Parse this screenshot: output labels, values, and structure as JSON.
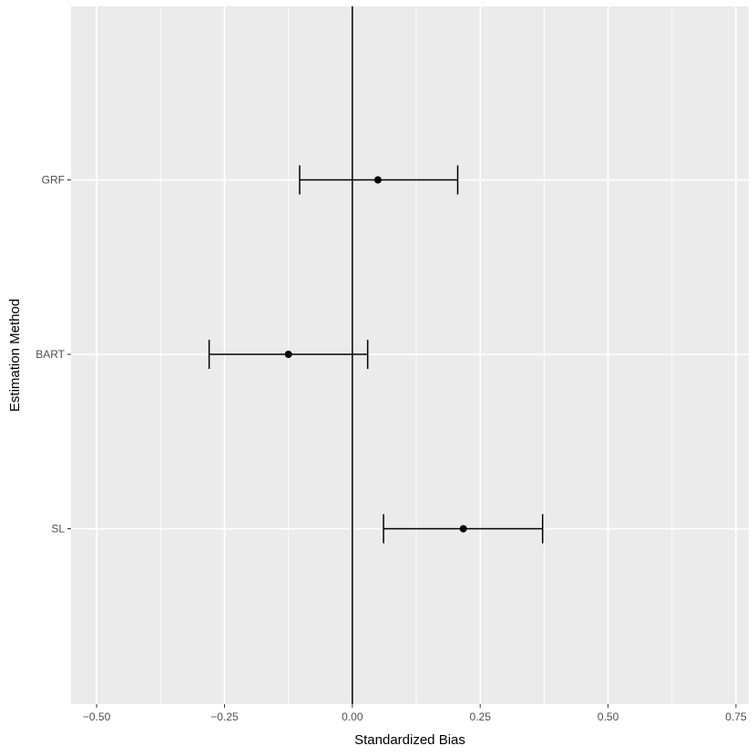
{
  "chart_data": {
    "type": "errorbar",
    "orientation": "horizontal",
    "xlabel": "Standardized Bias",
    "ylabel": "Estimation Method",
    "xlim": [
      -0.55,
      0.775
    ],
    "x_ticks": [
      -0.5,
      -0.25,
      0.0,
      0.25,
      0.5,
      0.75
    ],
    "x_tick_labels": [
      "−0.50",
      "−0.25",
      "0.00",
      "0.25",
      "0.50",
      "0.75"
    ],
    "categories": [
      "GRF",
      "BART",
      "SL"
    ],
    "points": [
      {
        "method": "GRF",
        "estimate": 0.05,
        "lower": -0.103,
        "upper": 0.206
      },
      {
        "method": "BART",
        "estimate": -0.125,
        "lower": -0.28,
        "upper": 0.03
      },
      {
        "method": "SL",
        "estimate": 0.217,
        "lower": 0.061,
        "upper": 0.372
      }
    ],
    "reference_line_x": 0,
    "grid": true,
    "colors": {
      "panel": "#ebebeb",
      "grid": "#ffffff",
      "marks": "#000000"
    }
  }
}
